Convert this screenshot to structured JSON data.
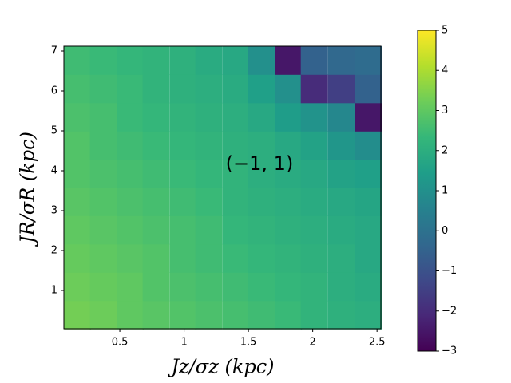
{
  "chart_data": {
    "type": "heatmap",
    "xlabel": "Jz/σz (kpc)",
    "ylabel": "JR/σR (kpc)",
    "annotation": "(−1, 1)",
    "colormap": "viridis",
    "x": [
      0.17,
      0.37,
      0.58,
      0.78,
      0.99,
      1.19,
      1.4,
      1.6,
      1.81,
      2.01,
      2.22,
      2.43
    ],
    "y": [
      0.39,
      1.1,
      1.81,
      2.52,
      3.23,
      3.93,
      4.64,
      5.35,
      6.06,
      6.77
    ],
    "z": [
      [
        3.3,
        3.2,
        3.0,
        2.9,
        2.8,
        2.7,
        2.6,
        2.5,
        2.4,
        2.2,
        2.1,
        2.0
      ],
      [
        3.2,
        3.1,
        3.0,
        2.8,
        2.7,
        2.6,
        2.5,
        2.4,
        2.3,
        2.2,
        2.0,
        1.9
      ],
      [
        3.1,
        3.0,
        2.9,
        2.8,
        2.6,
        2.5,
        2.4,
        2.3,
        2.2,
        2.1,
        2.0,
        1.8
      ],
      [
        3.0,
        2.9,
        2.8,
        2.7,
        2.6,
        2.5,
        2.3,
        2.2,
        2.1,
        2.0,
        1.9,
        1.8
      ],
      [
        2.9,
        2.8,
        2.7,
        2.6,
        2.5,
        2.4,
        2.2,
        2.1,
        2.0,
        1.9,
        1.8,
        1.7
      ],
      [
        2.8,
        2.7,
        2.6,
        2.5,
        2.4,
        2.3,
        2.2,
        2.0,
        1.9,
        1.8,
        1.6,
        1.5
      ],
      [
        2.8,
        2.6,
        2.5,
        2.4,
        2.3,
        2.2,
        2.1,
        2.0,
        1.8,
        1.6,
        1.2,
        0.9
      ],
      [
        2.7,
        2.6,
        2.4,
        2.3,
        2.2,
        2.1,
        2.0,
        1.8,
        1.4,
        1.1,
        0.7,
        -2.5
      ],
      [
        2.6,
        2.5,
        2.4,
        2.2,
        2.1,
        2.0,
        1.9,
        1.5,
        1.0,
        -2.0,
        -1.5,
        -0.5
      ],
      [
        2.5,
        2.4,
        2.3,
        2.2,
        2.1,
        1.9,
        1.8,
        1.0,
        -2.5,
        -0.5,
        -0.3,
        -0.2
      ]
    ],
    "xlim": [
      0.065,
      2.53
    ],
    "ylim": [
      0.04,
      7.12
    ],
    "xticks": [
      0.5,
      1.0,
      1.5,
      2.0,
      2.5
    ],
    "yticks": [
      1,
      2,
      3,
      4,
      5,
      6,
      7
    ],
    "clim": [
      -3,
      5
    ],
    "cticks": [
      {
        "value": -3,
        "label": "−3"
      },
      {
        "value": -2,
        "label": "−2"
      },
      {
        "value": -1,
        "label": "−1"
      },
      0,
      1,
      2,
      3,
      4,
      5
    ]
  }
}
